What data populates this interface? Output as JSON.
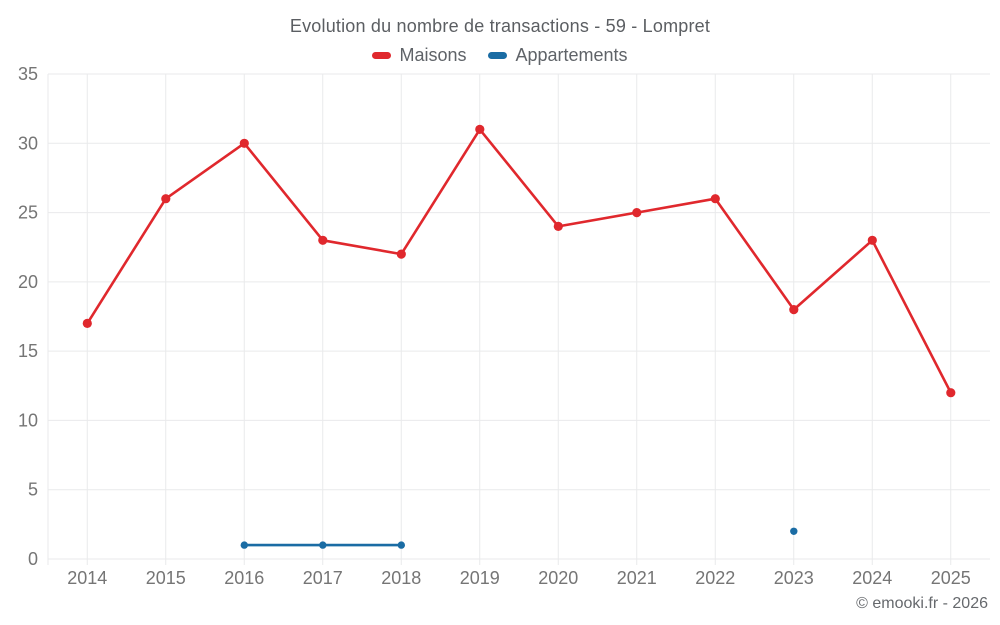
{
  "title": "Evolution du nombre de transactions - 59 - Lompret",
  "legend": [
    {
      "label": "Maisons",
      "color": "#e0282d"
    },
    {
      "label": "Appartements",
      "color": "#1a6ca4"
    }
  ],
  "attribution": "© emooki.fr - 2026",
  "colors": {
    "maisons_red": "#e0282d",
    "appartements_blue": "#1a6ca4",
    "gridline": "#e9eaeb",
    "axis_label": "#757575",
    "title_text": "#5b5e62"
  },
  "chart_data": {
    "type": "line",
    "title": "Evolution du nombre de transactions - 59 - Lompret",
    "categories": [
      "2014",
      "2015",
      "2016",
      "2017",
      "2018",
      "2019",
      "2020",
      "2021",
      "2022",
      "2023",
      "2024",
      "2025"
    ],
    "series": [
      {
        "name": "Maisons",
        "color": "#e0282d",
        "values": [
          17,
          26,
          30,
          23,
          22,
          31,
          24,
          25,
          26,
          18,
          23,
          12
        ]
      },
      {
        "name": "Appartements",
        "color": "#1a6ca4",
        "values": [
          null,
          null,
          1,
          1,
          1,
          null,
          null,
          null,
          null,
          2,
          null,
          null
        ]
      }
    ],
    "xlabel": "",
    "ylabel": "",
    "ylim": [
      0,
      35
    ],
    "yticks": [
      0,
      5,
      10,
      15,
      20,
      25,
      30,
      35
    ],
    "grid": true,
    "legend_position": "top"
  }
}
